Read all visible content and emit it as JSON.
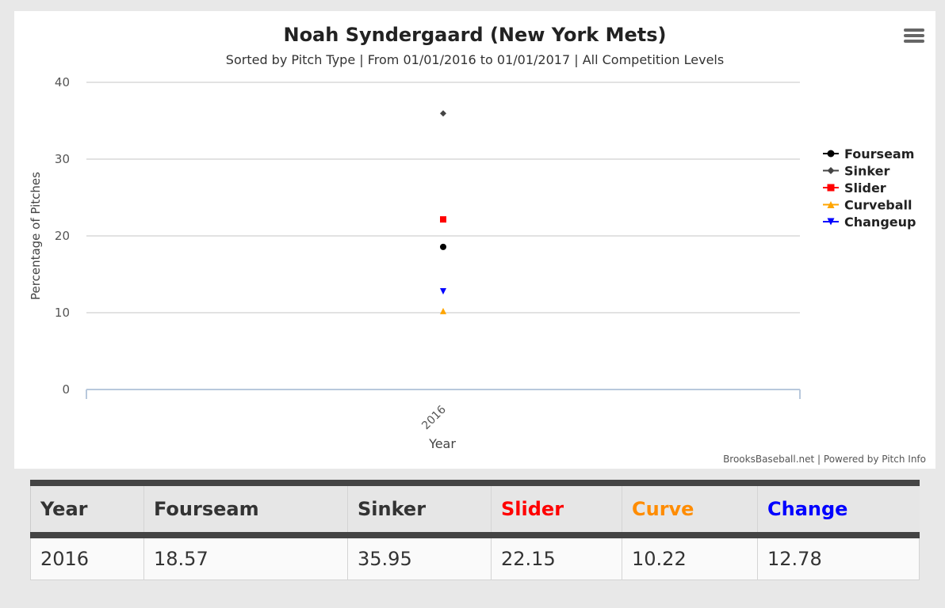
{
  "chart_data": {
    "type": "scatter",
    "title": "Noah Syndergaard (New York Mets)",
    "subtitle": "Sorted by Pitch Type | From 01/01/2016 to 01/01/2017 | All Competition Levels",
    "xlabel": "Year",
    "ylabel": "Percentage of Pitches",
    "categories": [
      "2016"
    ],
    "ylim": [
      0,
      40
    ],
    "yticks": [
      0,
      10,
      20,
      30,
      40
    ],
    "grid": true,
    "legend_position": "right",
    "credits": "BrooksBaseball.net | Powered by Pitch Info",
    "series": [
      {
        "name": "Fourseam",
        "values": [
          18.57
        ],
        "color": "#000000",
        "marker": "circle"
      },
      {
        "name": "Sinker",
        "values": [
          35.95
        ],
        "color": "#444444",
        "marker": "diamond"
      },
      {
        "name": "Slider",
        "values": [
          22.15
        ],
        "color": "#ff0000",
        "marker": "square"
      },
      {
        "name": "Curveball",
        "values": [
          10.22
        ],
        "color": "#ffa500",
        "marker": "triangle"
      },
      {
        "name": "Changeup",
        "values": [
          12.78
        ],
        "color": "#0000ff",
        "marker": "triangle-down"
      }
    ]
  },
  "table": {
    "headers": [
      {
        "label": "Year",
        "color": "#333333"
      },
      {
        "label": "Fourseam",
        "color": "#333333"
      },
      {
        "label": "Sinker",
        "color": "#333333"
      },
      {
        "label": "Slider",
        "color": "#ff0000"
      },
      {
        "label": "Curve",
        "color": "#ff8c00"
      },
      {
        "label": "Change",
        "color": "#0000ff"
      }
    ],
    "rows": [
      [
        "2016",
        "18.57",
        "35.95",
        "22.15",
        "10.22",
        "12.78"
      ]
    ]
  }
}
